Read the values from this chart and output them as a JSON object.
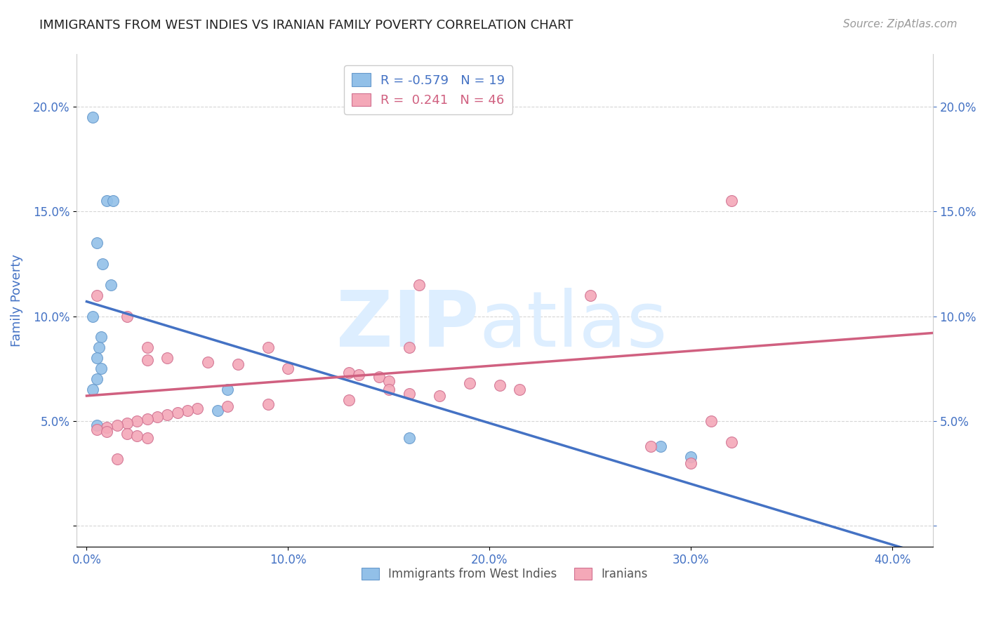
{
  "title": "IMMIGRANTS FROM WEST INDIES VS IRANIAN FAMILY POVERTY CORRELATION CHART",
  "source": "Source: ZipAtlas.com",
  "ylabel_label": "Family Poverty",
  "x_ticks": [
    0.0,
    0.1,
    0.2,
    0.3,
    0.4
  ],
  "x_tick_labels": [
    "0.0%",
    "10.0%",
    "20.0%",
    "30.0%",
    "40.0%"
  ],
  "y_ticks": [
    0.0,
    0.05,
    0.1,
    0.15,
    0.2
  ],
  "y_tick_labels": [
    "",
    "5.0%",
    "10.0%",
    "15.0%",
    "20.0%"
  ],
  "xlim": [
    -0.005,
    0.42
  ],
  "ylim": [
    -0.01,
    0.225
  ],
  "blue_scatter_x": [
    0.003,
    0.01,
    0.013,
    0.005,
    0.008,
    0.012,
    0.003,
    0.007,
    0.006,
    0.005,
    0.007,
    0.005,
    0.003,
    0.07,
    0.065,
    0.005,
    0.285,
    0.3,
    0.16
  ],
  "blue_scatter_y": [
    0.195,
    0.155,
    0.155,
    0.135,
    0.125,
    0.115,
    0.1,
    0.09,
    0.085,
    0.08,
    0.075,
    0.07,
    0.065,
    0.065,
    0.055,
    0.048,
    0.038,
    0.033,
    0.042
  ],
  "pink_scatter_x": [
    0.32,
    0.165,
    0.25,
    0.005,
    0.02,
    0.03,
    0.09,
    0.16,
    0.04,
    0.03,
    0.06,
    0.075,
    0.1,
    0.13,
    0.135,
    0.145,
    0.15,
    0.19,
    0.205,
    0.215,
    0.15,
    0.16,
    0.175,
    0.13,
    0.09,
    0.07,
    0.055,
    0.05,
    0.045,
    0.04,
    0.035,
    0.03,
    0.025,
    0.02,
    0.015,
    0.01,
    0.005,
    0.01,
    0.02,
    0.025,
    0.03,
    0.31,
    0.32,
    0.28,
    0.015,
    0.3
  ],
  "pink_scatter_y": [
    0.155,
    0.115,
    0.11,
    0.11,
    0.1,
    0.085,
    0.085,
    0.085,
    0.08,
    0.079,
    0.078,
    0.077,
    0.075,
    0.073,
    0.072,
    0.071,
    0.069,
    0.068,
    0.067,
    0.065,
    0.065,
    0.063,
    0.062,
    0.06,
    0.058,
    0.057,
    0.056,
    0.055,
    0.054,
    0.053,
    0.052,
    0.051,
    0.05,
    0.049,
    0.048,
    0.047,
    0.046,
    0.045,
    0.044,
    0.043,
    0.042,
    0.05,
    0.04,
    0.038,
    0.032,
    0.03
  ],
  "blue_line_x": [
    0.0,
    0.41
  ],
  "blue_line_y": [
    0.107,
    -0.012
  ],
  "pink_line_x": [
    0.0,
    0.42
  ],
  "pink_line_y": [
    0.062,
    0.092
  ],
  "blue_color": "#92C0E8",
  "blue_edge_color": "#6699CC",
  "pink_color": "#F4A8B8",
  "pink_edge_color": "#D07090",
  "blue_line_color": "#4472C4",
  "pink_line_color": "#D06080",
  "legend_blue_r": "-0.579",
  "legend_blue_n": "19",
  "legend_pink_r": "0.241",
  "legend_pink_n": "46",
  "watermark_zip": "ZIP",
  "watermark_atlas": "atlas",
  "background_color": "#ffffff",
  "grid_color": "#cccccc",
  "title_color": "#222222",
  "axis_label_color": "#4472C4",
  "tick_color": "#4472C4"
}
